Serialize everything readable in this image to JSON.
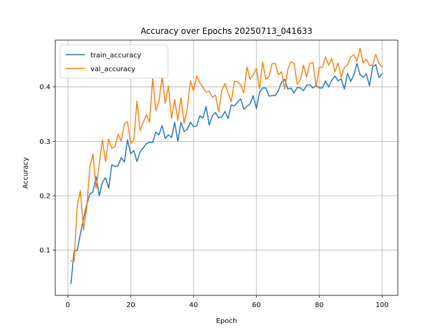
{
  "chart_data": {
    "type": "line",
    "title": "Accuracy over Epochs 20250713_041633",
    "xlabel": "Epoch",
    "ylabel": "Accuracy",
    "xlim": [
      -4,
      105
    ],
    "ylim": [
      0.017,
      0.486
    ],
    "xticks": [
      0,
      20,
      40,
      60,
      80,
      100
    ],
    "yticks": [
      0.1,
      0.2,
      0.3,
      0.4
    ],
    "grid": true,
    "legend_position": "top-left",
    "x": [
      1,
      2,
      3,
      4,
      5,
      6,
      7,
      8,
      9,
      10,
      11,
      12,
      13,
      14,
      15,
      16,
      17,
      18,
      19,
      20,
      21,
      22,
      23,
      24,
      25,
      26,
      27,
      28,
      29,
      30,
      31,
      32,
      33,
      34,
      35,
      36,
      37,
      38,
      39,
      40,
      41,
      42,
      43,
      44,
      45,
      46,
      47,
      48,
      49,
      50,
      51,
      52,
      53,
      54,
      55,
      56,
      57,
      58,
      59,
      60,
      61,
      62,
      63,
      64,
      65,
      66,
      67,
      68,
      69,
      70,
      71,
      72,
      73,
      74,
      75,
      76,
      77,
      78,
      79,
      80,
      81,
      82,
      83,
      84,
      85,
      86,
      87,
      88,
      89,
      90,
      91,
      92,
      93,
      94,
      95,
      96,
      97,
      98,
      99,
      100
    ],
    "series": [
      {
        "name": "train_accuracy",
        "color": "#1f77b4",
        "values": [
          0.039,
          0.098,
          0.1,
          0.13,
          0.158,
          0.183,
          0.203,
          0.207,
          0.235,
          0.2,
          0.225,
          0.233,
          0.214,
          0.257,
          0.254,
          0.255,
          0.27,
          0.262,
          0.303,
          0.277,
          0.283,
          0.263,
          0.281,
          0.288,
          0.296,
          0.298,
          0.298,
          0.317,
          0.312,
          0.329,
          0.305,
          0.312,
          0.307,
          0.335,
          0.3,
          0.335,
          0.318,
          0.322,
          0.335,
          0.327,
          0.328,
          0.347,
          0.343,
          0.364,
          0.33,
          0.347,
          0.353,
          0.343,
          0.345,
          0.355,
          0.342,
          0.367,
          0.365,
          0.372,
          0.378,
          0.359,
          0.364,
          0.369,
          0.384,
          0.36,
          0.39,
          0.398,
          0.398,
          0.383,
          0.384,
          0.384,
          0.393,
          0.409,
          0.414,
          0.396,
          0.398,
          0.389,
          0.399,
          0.398,
          0.393,
          0.403,
          0.404,
          0.398,
          0.403,
          0.398,
          0.398,
          0.411,
          0.4,
          0.412,
          0.42,
          0.411,
          0.415,
          0.396,
          0.425,
          0.41,
          0.422,
          0.443,
          0.422,
          0.418,
          0.424,
          0.402,
          0.437,
          0.441,
          0.417,
          0.424
        ]
      },
      {
        "name": "val_accuracy",
        "color": "#ff7f0e",
        "values": [
          0.08,
          0.08,
          0.183,
          0.209,
          0.137,
          0.177,
          0.252,
          0.277,
          0.214,
          0.258,
          0.303,
          0.263,
          0.304,
          0.287,
          0.29,
          0.313,
          0.3,
          0.333,
          0.336,
          0.296,
          0.303,
          0.374,
          0.32,
          0.335,
          0.349,
          0.335,
          0.416,
          0.357,
          0.374,
          0.419,
          0.37,
          0.402,
          0.342,
          0.377,
          0.338,
          0.38,
          0.333,
          0.36,
          0.411,
          0.393,
          0.42,
          0.408,
          0.399,
          0.39,
          0.392,
          0.381,
          0.385,
          0.354,
          0.393,
          0.406,
          0.389,
          0.373,
          0.41,
          0.41,
          0.404,
          0.389,
          0.437,
          0.414,
          0.422,
          0.434,
          0.396,
          0.446,
          0.414,
          0.419,
          0.443,
          0.443,
          0.422,
          0.428,
          0.396,
          0.432,
          0.446,
          0.443,
          0.405,
          0.413,
          0.44,
          0.418,
          0.443,
          0.445,
          0.4,
          0.436,
          0.436,
          0.455,
          0.44,
          0.452,
          0.428,
          0.444,
          0.418,
          0.436,
          0.441,
          0.455,
          0.459,
          0.447,
          0.471,
          0.444,
          0.451,
          0.44,
          0.44,
          0.46,
          0.443,
          0.437
        ]
      }
    ]
  }
}
